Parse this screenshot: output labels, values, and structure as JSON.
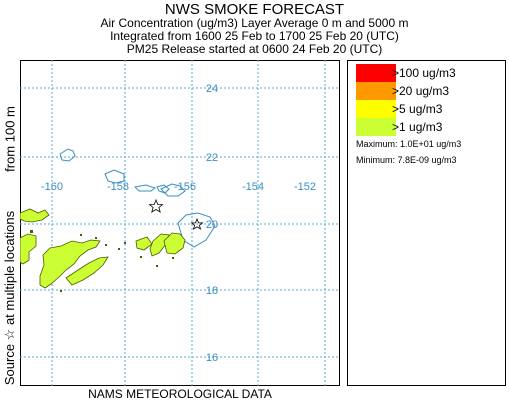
{
  "title": {
    "line1": "NWS SMOKE FORECAST",
    "line2": "Air Concentration (ug/m3) Layer Average    0 m and  5000 m",
    "line3": "Integrated from 1600 25 Feb to 1700 25 Feb 20 (UTC)",
    "line4": "PM25 Release started at 0600 24 Feb 20 (UTC)"
  },
  "side_label_top": "from  100 m",
  "side_label_bottom": "Source ☆   at multiple locations",
  "bottom_label": "NAMS METEOROLOGICAL DATA",
  "map": {
    "lon_labels": [
      "-160",
      "-158",
      "-156",
      "-154",
      "-152"
    ],
    "lat_labels": [
      "24",
      "22",
      "20",
      "18",
      "16"
    ],
    "grid_color": "#5aa8d8",
    "coast_color": "#3a8fc0"
  },
  "legend": {
    "items": [
      {
        "label": ">100 ug/m3",
        "color": "#ff0000"
      },
      {
        "label": ">20 ug/m3",
        "color": "#ff9900"
      },
      {
        "label": ">5 ug/m3",
        "color": "#ffff00"
      },
      {
        "label": ">1 ug/m3",
        "color": "#ccff33"
      }
    ],
    "maximum": "Maximum: 1.0E+01 ug/m3",
    "minimum": "Minimum: 7.8E-09 ug/m3"
  }
}
